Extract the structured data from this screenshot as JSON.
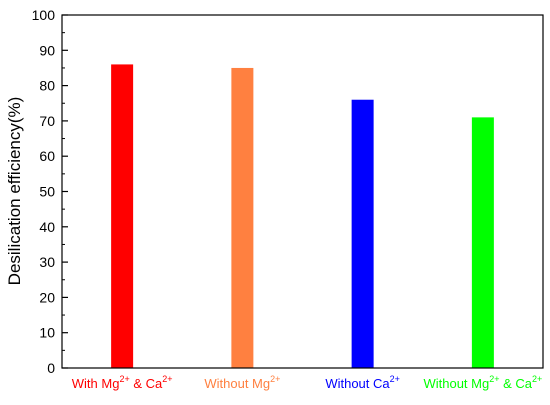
{
  "chart_data": {
    "type": "bar",
    "ylabel": "Desilication efficiency(%)",
    "xlabel": "",
    "ylim": [
      0,
      100
    ],
    "yticks": [
      0,
      10,
      20,
      30,
      40,
      50,
      60,
      70,
      80,
      90,
      100
    ],
    "grid": false,
    "categories": [
      {
        "parts": [
          [
            "With Mg",
            ""
          ],
          [
            "2+",
            "sup"
          ],
          [
            " & Ca",
            ""
          ],
          [
            "2+",
            "sup"
          ]
        ],
        "value": 86,
        "color": "#ff0000"
      },
      {
        "parts": [
          [
            "Without Mg",
            ""
          ],
          [
            "2+",
            "sup"
          ]
        ],
        "value": 85,
        "color": "#ff8040"
      },
      {
        "parts": [
          [
            "Without Ca",
            ""
          ],
          [
            "2+",
            "sup"
          ]
        ],
        "value": 76,
        "color": "#0000ff"
      },
      {
        "parts": [
          [
            "Without Mg",
            ""
          ],
          [
            "2+",
            "sup"
          ],
          [
            " & Ca",
            ""
          ],
          [
            "2+",
            "sup"
          ]
        ],
        "value": 71,
        "color": "#00ff00"
      }
    ]
  }
}
